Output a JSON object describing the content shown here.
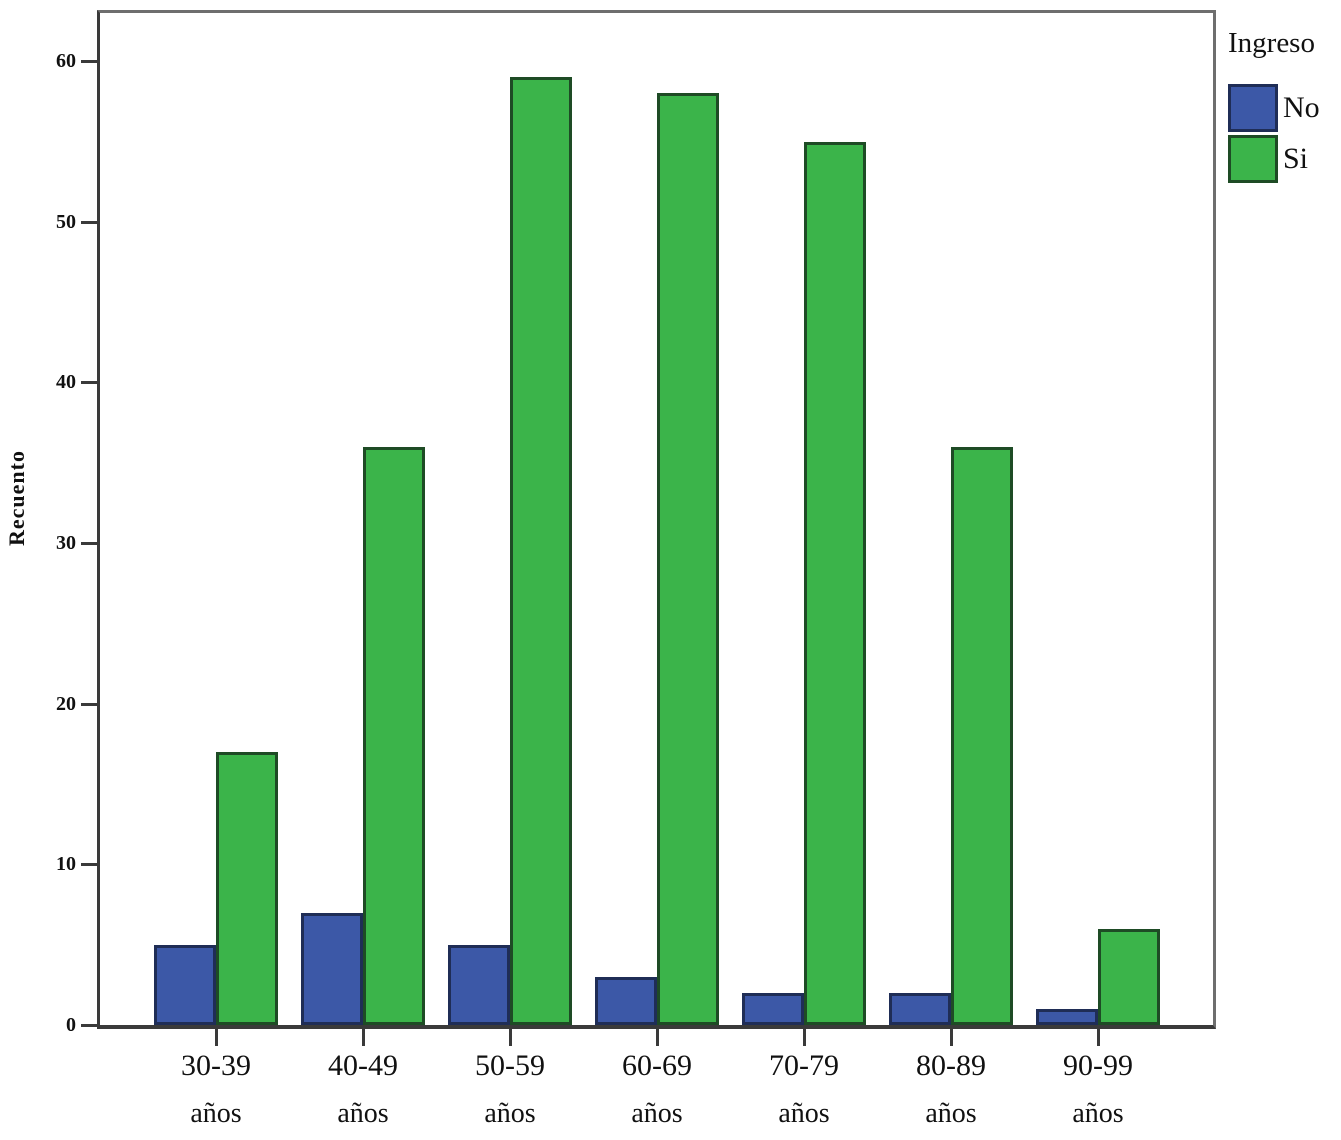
{
  "chart_data": {
    "type": "bar",
    "title": "",
    "ylabel": "Recuento",
    "xlabel": "",
    "categories": [
      "30-39",
      "40-49",
      "50-59",
      "60-69",
      "70-79",
      "80-89",
      "90-99"
    ],
    "category_unit": "años",
    "series": [
      {
        "name": "No",
        "color": "#3c58a7",
        "border_color": "#1f2d56",
        "values": [
          5,
          7,
          5,
          3,
          2,
          2,
          1
        ]
      },
      {
        "name": "Si",
        "color": "#3bb44a",
        "border_color": "#1e4b25",
        "values": [
          17,
          36,
          59,
          58,
          55,
          36,
          6
        ]
      }
    ],
    "legend_title": "Ingreso",
    "legend_position": "outside-top-right",
    "yticks": [
      0,
      10,
      20,
      30,
      40,
      50,
      60
    ],
    "ylim": [
      0,
      63
    ],
    "grid": false
  }
}
